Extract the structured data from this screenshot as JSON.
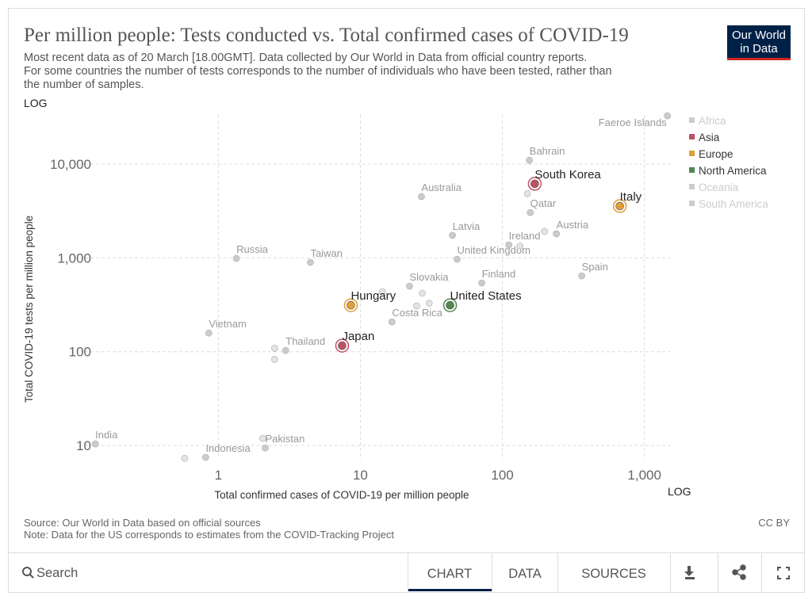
{
  "chart_data": {
    "type": "scatter",
    "title": "Per million people: Tests conducted vs. Total confirmed cases of COVID-19",
    "subtitle": [
      "Most recent data as of 20 March [18.00GMT]. Data collected by Our World in Data from official country reports.",
      "For some countries the number of tests corresponds to the number of individuals who have been tested, rather than",
      "the number of samples."
    ],
    "x_label": "Total confirmed cases of COVID-19 per million people",
    "y_label": "Total COVID-19 tests per million people",
    "x_scale_label": "LOG",
    "y_scale_label": "LOG",
    "log_x": true,
    "log_y": true,
    "grid": true,
    "xlim": [
      0.105,
      1515
    ],
    "ylim": [
      7.05,
      33500
    ],
    "xticks": [
      1,
      10,
      100,
      {
        "value": 1000,
        "label": "1,000"
      }
    ],
    "yticks": [
      10,
      100,
      {
        "value": 1000,
        "label": "1,000"
      },
      {
        "value": 10000,
        "label": "10,000"
      }
    ],
    "legend": [
      {
        "name": "Africa",
        "color": "#cccccc",
        "active": false
      },
      {
        "name": "Asia",
        "color": "#c15065",
        "active": true
      },
      {
        "name": "Europe",
        "color": "#e19e39",
        "active": true
      },
      {
        "name": "North America",
        "color": "#52874f",
        "active": true
      },
      {
        "name": "Oceania",
        "color": "#cccccc",
        "active": false
      },
      {
        "name": "South America",
        "color": "#cccccc",
        "active": false
      }
    ],
    "points": [
      {
        "label": "Faeroe Islands",
        "x": 1452,
        "y": 32800,
        "color": "#cccccc",
        "highlight": false
      },
      {
        "label": "Bahrain",
        "x": 155,
        "y": 11000,
        "color": "#cccccc",
        "highlight": false
      },
      {
        "label": "South Korea",
        "x": 169,
        "y": 6170,
        "color": "#c15065",
        "highlight": true
      },
      {
        "label": "Australia",
        "x": 26.9,
        "y": 4510,
        "color": "#cccccc",
        "highlight": false
      },
      {
        "label": "Qatar",
        "x": 157,
        "y": 3050,
        "color": "#cccccc",
        "highlight": false
      },
      {
        "label": "Italy",
        "x": 671,
        "y": 3570,
        "color": "#e19e39",
        "highlight": true
      },
      {
        "label": "Austria",
        "x": 240,
        "y": 1810,
        "color": "#cccccc",
        "highlight": false
      },
      {
        "label": "Latvia",
        "x": 44.5,
        "y": 1740,
        "color": "#cccccc",
        "highlight": false
      },
      {
        "label": "Ireland",
        "x": 111,
        "y": 1380,
        "color": "#cccccc",
        "highlight": false
      },
      {
        "label": "United Kingdom",
        "x": 48,
        "y": 969,
        "color": "#cccccc",
        "highlight": false
      },
      {
        "label": "Russia",
        "x": 1.34,
        "y": 988,
        "color": "#cccccc",
        "highlight": false
      },
      {
        "label": "Taiwan",
        "x": 4.45,
        "y": 897,
        "color": "#cccccc",
        "highlight": false
      },
      {
        "label": "Spain",
        "x": 362,
        "y": 644,
        "color": "#cccccc",
        "highlight": false
      },
      {
        "label": "Finland",
        "x": 71.6,
        "y": 541,
        "color": "#cccccc",
        "highlight": false
      },
      {
        "label": "Slovakia",
        "x": 22.2,
        "y": 500,
        "color": "#cccccc",
        "highlight": false
      },
      {
        "label": "Hungary",
        "x": 8.57,
        "y": 313,
        "color": "#e19e39",
        "highlight": true
      },
      {
        "label": "United States",
        "x": 42.8,
        "y": 313,
        "color": "#52874f",
        "highlight": true
      },
      {
        "label": "Costa Rica",
        "x": 16.7,
        "y": 208,
        "color": "#cccccc",
        "highlight": false
      },
      {
        "label": "Vietnam",
        "x": 0.857,
        "y": 158,
        "color": "#cccccc",
        "highlight": false
      },
      {
        "label": "Japan",
        "x": 7.44,
        "y": 116,
        "color": "#c15065",
        "highlight": true
      },
      {
        "label": "Thailand",
        "x": 2.98,
        "y": 103,
        "color": "#cccccc",
        "highlight": false
      },
      {
        "label": "India",
        "x": 0.136,
        "y": 10.4,
        "color": "#cccccc",
        "highlight": false
      },
      {
        "label": "Pakistan",
        "x": 2.14,
        "y": 9.4,
        "color": "#cccccc",
        "highlight": false
      },
      {
        "label": "Indonesia",
        "x": 0.814,
        "y": 7.47,
        "color": "#cccccc",
        "highlight": false
      },
      {
        "label": null,
        "x": 0.58,
        "y": 7.3,
        "color": "#e4e4e4",
        "highlight": false
      },
      {
        "label": null,
        "x": 2.06,
        "y": 11.9,
        "color": "#e4e4e4",
        "highlight": false
      },
      {
        "label": null,
        "x": 2.49,
        "y": 109,
        "color": "#e4e4e4",
        "highlight": false
      },
      {
        "label": null,
        "x": 2.49,
        "y": 83,
        "color": "#e4e4e4",
        "highlight": false
      },
      {
        "label": null,
        "x": 150,
        "y": 4850,
        "color": "#e4e4e4",
        "highlight": false
      },
      {
        "label": null,
        "x": 198,
        "y": 1920,
        "color": "#e4e4e4",
        "highlight": false
      },
      {
        "label": null,
        "x": 133,
        "y": 1340,
        "color": "#e4e4e4",
        "highlight": false
      },
      {
        "label": null,
        "x": 14.3,
        "y": 436,
        "color": "#e4e4e4",
        "highlight": false
      },
      {
        "label": null,
        "x": 27.3,
        "y": 420,
        "color": "#e4e4e4",
        "highlight": false
      },
      {
        "label": null,
        "x": 24.9,
        "y": 308,
        "color": "#e4e4e4",
        "highlight": false
      },
      {
        "label": null,
        "x": 30.5,
        "y": 329,
        "color": "#e4e4e4",
        "highlight": false
      }
    ]
  },
  "logo": [
    "Our World",
    "in Data"
  ],
  "source": "Source: Our World in Data based on official sources",
  "note": "Note: Data for the US corresponds to estimates from the COVID-Tracking Project",
  "license": "CC BY",
  "search": "Search",
  "tabs": [
    "CHART",
    "DATA",
    "SOURCES"
  ]
}
